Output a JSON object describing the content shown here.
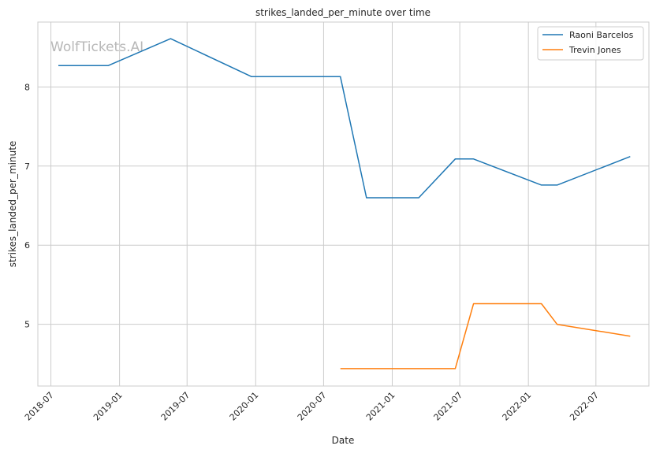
{
  "chart_data": {
    "type": "line",
    "title": "strikes_landed_per_minute over time",
    "xlabel": "Date",
    "ylabel": "strikes_landed_per_minute",
    "watermark": "WolfTickets.AI",
    "grid": true,
    "legend_position": "top-right",
    "x_ticks": [
      "2018-07",
      "2019-01",
      "2019-07",
      "2020-01",
      "2020-07",
      "2021-01",
      "2021-07",
      "2022-01",
      "2022-07"
    ],
    "y_ticks": [
      "5",
      "6",
      "7",
      "8"
    ],
    "xlim": [
      "2018-05-27",
      "2022-11-20"
    ],
    "ylim": [
      4.22,
      8.82
    ],
    "series": [
      {
        "name": "Raoni Barcelos",
        "color": "#1f77b4",
        "points": [
          {
            "x": "2018-07-21",
            "y": 8.27
          },
          {
            "x": "2018-12-02",
            "y": 8.27
          },
          {
            "x": "2019-05-18",
            "y": 8.61
          },
          {
            "x": "2019-12-21",
            "y": 8.13
          },
          {
            "x": "2020-08-15",
            "y": 8.13
          },
          {
            "x": "2020-10-24",
            "y": 6.6
          },
          {
            "x": "2021-03-13",
            "y": 6.6
          },
          {
            "x": "2021-06-19",
            "y": 7.09
          },
          {
            "x": "2021-08-07",
            "y": 7.09
          },
          {
            "x": "2022-02-05",
            "y": 6.76
          },
          {
            "x": "2022-03-19",
            "y": 6.76
          },
          {
            "x": "2022-10-01",
            "y": 7.12
          }
        ]
      },
      {
        "name": "Trevin Jones",
        "color": "#ff7f0e",
        "points": [
          {
            "x": "2020-08-15",
            "y": 4.44
          },
          {
            "x": "2021-06-19",
            "y": 4.44
          },
          {
            "x": "2021-08-07",
            "y": 5.26
          },
          {
            "x": "2022-02-05",
            "y": 5.26
          },
          {
            "x": "2022-03-19",
            "y": 5.0
          },
          {
            "x": "2022-10-01",
            "y": 4.85
          }
        ]
      }
    ]
  }
}
